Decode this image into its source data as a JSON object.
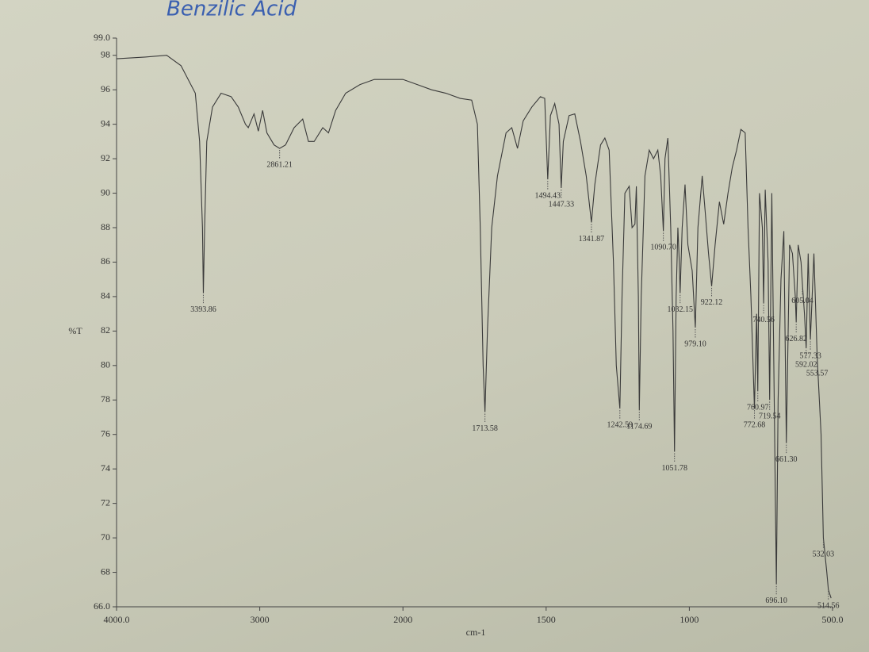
{
  "chart_data": {
    "type": "line",
    "title": "Benzilic Acid",
    "xlabel": "cm-1",
    "ylabel": "%T",
    "color": "#3a3a3a",
    "xlim": [
      4000,
      500
    ],
    "xticks": [
      {
        "value": 4000,
        "label": "4000.0"
      },
      3000,
      2000,
      1500,
      1000,
      {
        "value": 500,
        "label": "500.0"
      }
    ],
    "ylim": [
      66,
      99
    ],
    "yticks": [
      {
        "value": 66,
        "label": "66.0"
      },
      68,
      70,
      72,
      74,
      76,
      78,
      80,
      82,
      84,
      86,
      88,
      90,
      92,
      94,
      96,
      98,
      {
        "value": 99,
        "label": "99.0"
      }
    ],
    "x": [
      4000,
      3800,
      3650,
      3550,
      3450,
      3420,
      3400,
      3393.86,
      3385,
      3370,
      3330,
      3270,
      3200,
      3150,
      3100,
      3080,
      3040,
      3010,
      2980,
      2950,
      2900,
      2861.21,
      2820,
      2760,
      2700,
      2660,
      2620,
      2560,
      2520,
      2470,
      2400,
      2300,
      2200,
      2100,
      2000,
      1950,
      1900,
      1850,
      1800,
      1760,
      1740,
      1730,
      1720,
      1713.58,
      1705,
      1690,
      1670,
      1640,
      1620,
      1600,
      1580,
      1550,
      1520,
      1505,
      1494.43,
      1485,
      1470,
      1455,
      1447.33,
      1440,
      1420,
      1400,
      1380,
      1360,
      1341.87,
      1330,
      1310,
      1295,
      1280,
      1265,
      1255,
      1242.59,
      1235,
      1225,
      1210,
      1200,
      1190,
      1185,
      1178,
      1174.69,
      1168,
      1155,
      1140,
      1125,
      1110,
      1100,
      1090.7,
      1085,
      1075,
      1065,
      1057,
      1051.78,
      1046,
      1040,
      1035,
      1032.15,
      1025,
      1015,
      1005,
      990,
      979.1,
      970,
      955,
      945,
      933,
      922.12,
      910,
      895,
      880,
      865,
      850,
      835,
      820,
      805,
      795,
      785,
      772.68,
      765,
      760.97,
      755,
      745,
      740.56,
      735,
      725,
      719.54,
      712,
      705,
      696.1,
      690,
      680,
      670,
      661.3,
      650,
      640,
      630,
      626.82,
      620,
      610,
      605.04,
      598,
      592.02,
      585,
      577.33,
      565,
      553.57,
      540,
      532.03,
      520,
      514.56,
      505
    ],
    "values": [
      97.8,
      97.9,
      98.0,
      97.4,
      95.8,
      93,
      88,
      84.2,
      88,
      93,
      95,
      95.8,
      95.6,
      95,
      94,
      93.8,
      94.6,
      93.6,
      94.8,
      93.5,
      92.8,
      92.6,
      92.8,
      93.8,
      94.3,
      93.0,
      93.0,
      93.8,
      93.5,
      94.8,
      95.8,
      96.3,
      96.6,
      96.6,
      96.6,
      96.3,
      96,
      95.8,
      95.5,
      95.4,
      94,
      88,
      80,
      77.3,
      82,
      88,
      91,
      93.5,
      93.8,
      92.6,
      94.2,
      95,
      95.6,
      95.5,
      90.8,
      94.5,
      95.2,
      94,
      90.3,
      93,
      94.5,
      94.6,
      93,
      91,
      88.3,
      90.5,
      92.8,
      93.2,
      92.5,
      86,
      80,
      77.5,
      84,
      90,
      90.4,
      88,
      88.2,
      90.4,
      84,
      77.4,
      84,
      91,
      92.5,
      92,
      92.5,
      91,
      87.8,
      92,
      93.2,
      88,
      82,
      75,
      84,
      88,
      86,
      84.2,
      88,
      90.5,
      87,
      85.5,
      82.2,
      88,
      91,
      89,
      86.5,
      84.6,
      87,
      89.5,
      88.2,
      90,
      91.5,
      92.5,
      93.7,
      93.5,
      88,
      84,
      77.5,
      83,
      78.5,
      90,
      88,
      83.6,
      90.2,
      86,
      78,
      90,
      80,
      67.3,
      78,
      85,
      87.8,
      75.5,
      87,
      86.5,
      84,
      82.5,
      87,
      86,
      84.7,
      83,
      81,
      86.5,
      81.5,
      86.5,
      80.5,
      76,
      70,
      68,
      67,
      66.5
    ],
    "peaks": {
      "x": [
        3393.86,
        2861.21,
        1713.58,
        1494.43,
        1447.33,
        1341.87,
        1242.59,
        1174.69,
        1090.7,
        1051.78,
        1032.15,
        979.1,
        922.12,
        772.68,
        760.97,
        740.56,
        719.54,
        696.1,
        661.3,
        626.82,
        605.04,
        592.02,
        577.33,
        553.57,
        532.03,
        514.56
      ],
      "y": [
        84.2,
        92.6,
        77.3,
        90.8,
        90.3,
        88.3,
        77.5,
        77.4,
        87.8,
        75,
        84.2,
        82.2,
        84.6,
        77.5,
        78.5,
        83.6,
        78,
        67.3,
        75.5,
        82.5,
        84.7,
        81,
        81.5,
        80.5,
        70,
        67
      ],
      "labels": [
        "3393.86",
        "2861.21",
        "1713.58",
        "1494.43",
        "1447.33",
        "1341.87",
        "1242.59",
        "1174.69",
        "1090.70",
        "1051.78",
        "1032.15",
        "979.10",
        "922.12",
        "772.68",
        "760.97",
        "740.56",
        "719.54",
        "696.10",
        "661.30",
        "626.82",
        "605.04",
        "592.02",
        "577.33",
        "553.57",
        "532.03",
        "514.56"
      ]
    }
  }
}
